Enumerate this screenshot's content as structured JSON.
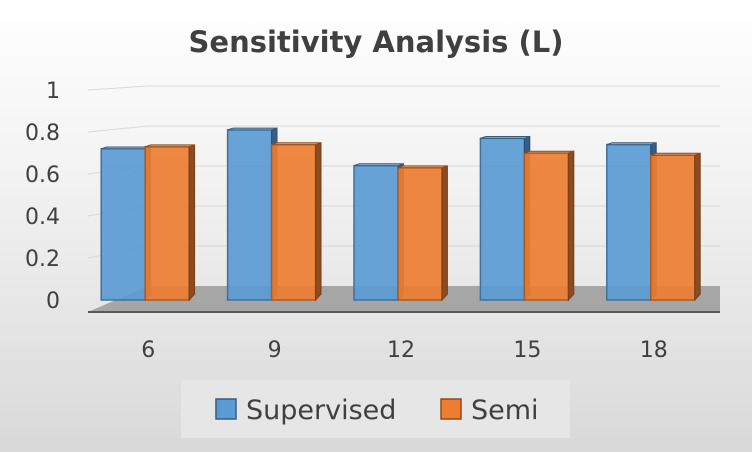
{
  "chart_data": {
    "type": "bar",
    "title": "Sensitivity Analysis (L)",
    "xlabel": "",
    "ylabel": "",
    "categories": [
      "6",
      "9",
      "12",
      "15",
      "18"
    ],
    "series": [
      {
        "name": "Supervised",
        "values": [
          0.72,
          0.81,
          0.64,
          0.77,
          0.74
        ],
        "color": "#5b9bd5"
      },
      {
        "name": "Semi",
        "values": [
          0.73,
          0.74,
          0.63,
          0.7,
          0.69
        ],
        "color": "#ed7d31"
      }
    ],
    "ylim": [
      0,
      1
    ],
    "yticks": [
      "0",
      "0.2",
      "0.4",
      "0.6",
      "0.8",
      "1"
    ],
    "grid": true,
    "legend_position": "bottom",
    "style": "3d-clustered-column"
  }
}
